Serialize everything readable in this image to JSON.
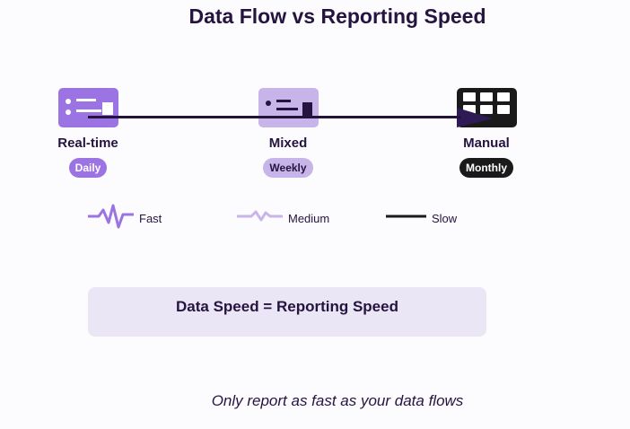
{
  "title": "Data Flow vs Reporting Speed",
  "colors": {
    "fast": "#9c73e3",
    "medium": "#c7b5ea",
    "slow": "#1a1a1a",
    "flow_line": "#23143c",
    "text": "#25143f",
    "summary_bg": "#eae6f5"
  },
  "stages": [
    {
      "label": "Real-time",
      "frequency": "Daily",
      "icon": "realtime-report-icon"
    },
    {
      "label": "Mixed",
      "frequency": "Weekly",
      "icon": "mixed-report-icon"
    },
    {
      "label": "Manual",
      "frequency": "Monthly",
      "icon": "manual-grid-icon"
    }
  ],
  "legend": [
    {
      "label": "Fast",
      "icon": "zigzag-fast-icon"
    },
    {
      "label": "Medium",
      "icon": "zigzag-medium-icon"
    },
    {
      "label": "Slow",
      "icon": "flat-line-slow-icon"
    }
  ],
  "summary": "Data Speed = Reporting Speed",
  "tagline": "Only report as fast as your data flows"
}
